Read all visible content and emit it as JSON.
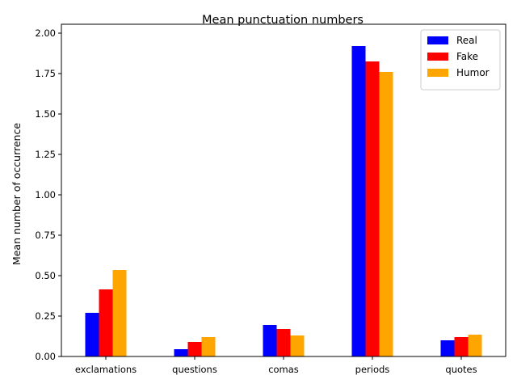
{
  "chart_data": {
    "type": "bar",
    "title": "Mean punctuation numbers",
    "xlabel": "",
    "ylabel": "Mean number of occurrence",
    "categories": [
      "exclamations",
      "questions",
      "comas",
      "periods",
      "quotes"
    ],
    "series": [
      {
        "name": "Real",
        "color": "#0000ff",
        "values": [
          0.27,
          0.045,
          0.195,
          1.92,
          0.1
        ]
      },
      {
        "name": "Fake",
        "color": "#ff0000",
        "values": [
          0.415,
          0.09,
          0.17,
          1.825,
          0.12
        ]
      },
      {
        "name": "Humor",
        "color": "#ffa500",
        "values": [
          0.535,
          0.12,
          0.13,
          1.76,
          0.135
        ]
      }
    ],
    "ylim": [
      0,
      2.0
    ],
    "yticks": [
      "0.00",
      "0.25",
      "0.50",
      "0.75",
      "1.00",
      "1.25",
      "1.50",
      "1.75",
      "2.00"
    ],
    "grid": false,
    "legend_position": "top-right"
  }
}
